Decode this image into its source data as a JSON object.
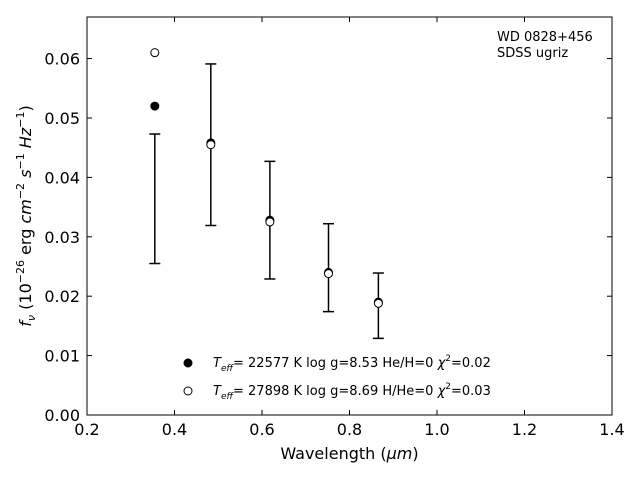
{
  "chart_data": {
    "type": "scatter",
    "xlabel_prefix": "Wavelength (",
    "xlabel_unit": "μm",
    "xlabel_suffix": ")",
    "ylabel": "f_ν (10^-26 erg cm^-2 s^-1 Hz^-1)",
    "xlim": [
      0.2,
      1.4
    ],
    "ylim": [
      0.0,
      0.067
    ],
    "x_ticks": [
      0.2,
      0.4,
      0.6,
      0.8,
      1.0,
      1.2,
      1.4
    ],
    "x_tick_labels": [
      "0.2",
      "0.4",
      "0.6",
      "0.8",
      "1.0",
      "1.2",
      "1.4"
    ],
    "y_ticks": [
      0.0,
      0.01,
      0.02,
      0.03,
      0.04,
      0.05,
      0.06
    ],
    "y_tick_labels": [
      "0.00",
      "0.01",
      "0.02",
      "0.03",
      "0.04",
      "0.05",
      "0.06"
    ],
    "grid": false,
    "annotation": [
      "WD 0828+456",
      "SDSS ugriz"
    ],
    "observed": {
      "x": [
        0.355,
        0.483,
        0.618,
        0.752,
        0.866
      ],
      "y": [
        0.0364,
        0.0455,
        0.0328,
        0.0248,
        0.0184
      ],
      "yerr": [
        0.0109,
        0.0136,
        0.0099,
        0.0074,
        0.0055
      ]
    },
    "series": [
      {
        "name": "T_eff= 22577 K  log g=8.53  He/H=0  χ²=0.02",
        "marker": "filled-circle",
        "x": [
          0.355,
          0.483,
          0.618,
          0.752,
          0.866
        ],
        "y": [
          0.052,
          0.0458,
          0.0328,
          0.024,
          0.019
        ]
      },
      {
        "name": "T_eff= 27898 K  log g=8.69  H/He=0  χ²=0.03",
        "marker": "open-circle",
        "x": [
          0.355,
          0.483,
          0.618,
          0.752,
          0.866
        ],
        "y": [
          0.061,
          0.0455,
          0.0325,
          0.0238,
          0.0188
        ]
      }
    ],
    "legend": [
      {
        "marker": "filled-circle",
        "teff_label": "T",
        "teff_sub": "eff",
        "text": "= 22577 K  log g=8.53  He/H=0  ",
        "chi": "χ",
        "chi_sup": "2",
        "chi_val": "=0.02"
      },
      {
        "marker": "open-circle",
        "teff_label": "T",
        "teff_sub": "eff",
        "text": "= 27898 K  log g=8.69  H/He=0  ",
        "chi": "χ",
        "chi_sup": "2",
        "chi_val": "=0.03"
      }
    ],
    "legend_placement": "lower-center",
    "colors": {
      "markers": "#000000",
      "axes": "#000000",
      "background": "#ffffff"
    }
  }
}
